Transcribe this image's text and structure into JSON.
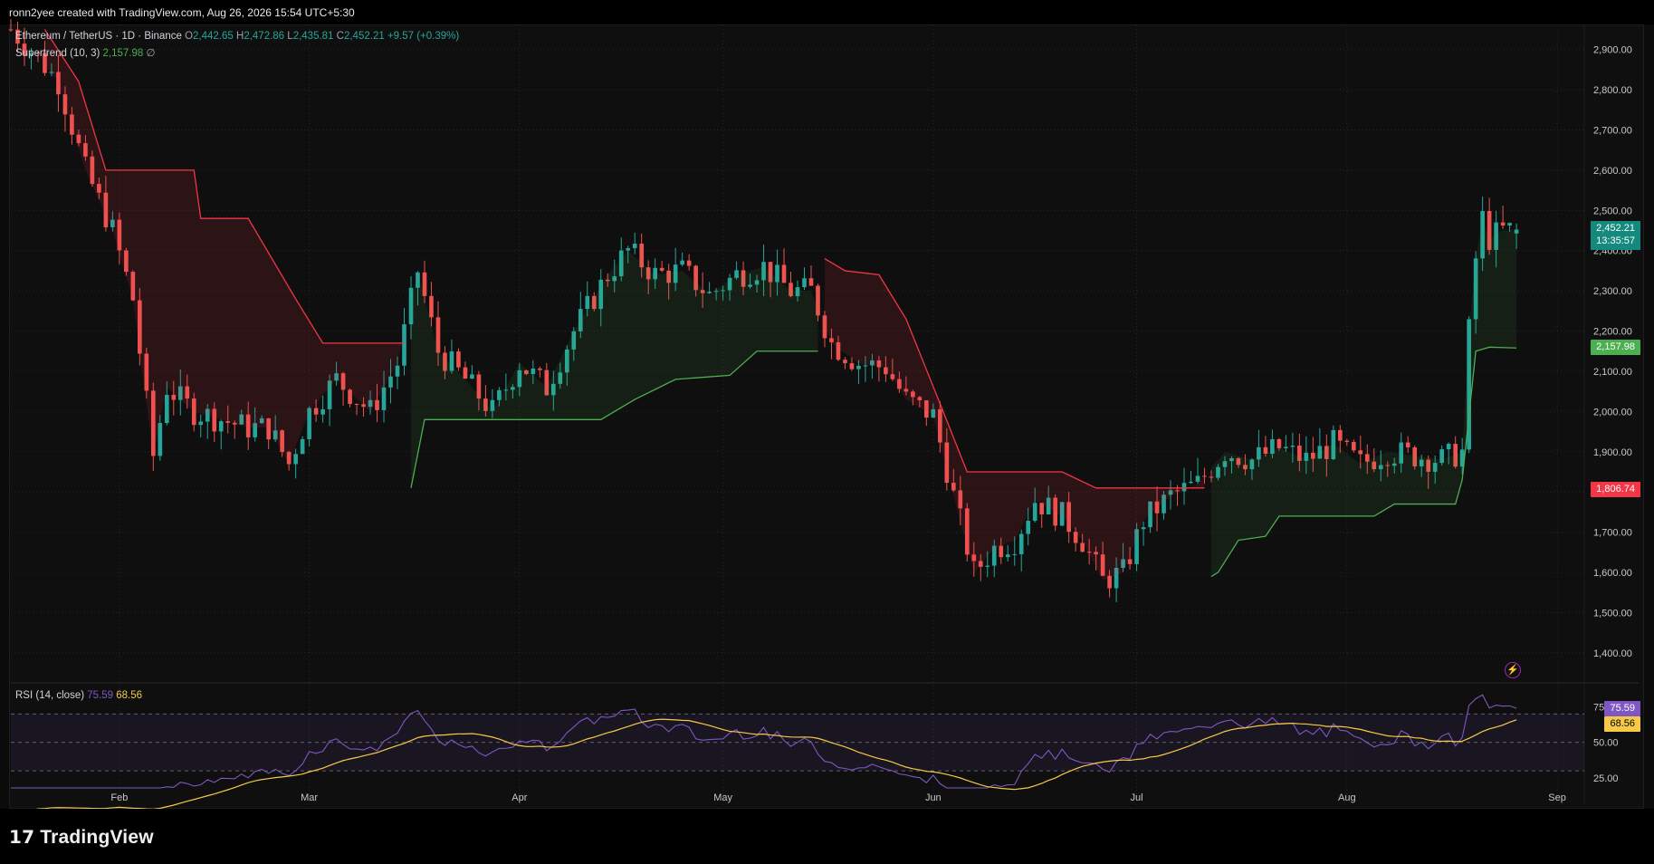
{
  "header": {
    "credit": "ronn2yee created with TradingView.com, Aug 26, 2026 15:54 UTC+5:30"
  },
  "legend": {
    "symbol": "Ethereum / TetherUS · 1D · Binance",
    "o_label": "O",
    "o_value": "2,442.65",
    "h_label": "H",
    "h_value": "2,472.86",
    "l_label": "L",
    "l_value": "2,435.81",
    "c_label": "C",
    "c_value": "2,452.21",
    "change": "+9.57 (+0.39%)",
    "supertrend_label": "Supertrend (10, 3)",
    "supertrend_value": "2,157.98",
    "supertrend_suffix": "∅",
    "rsi_label": "RSI (14, close)",
    "rsi_value": "75.59",
    "rsi_ma_value": "68.56"
  },
  "badges": {
    "last_price": "2,452.21",
    "countdown": "13:35:57",
    "supertrend_up": "2,157.98",
    "supertrend_down": "1,806.74",
    "rsi": "75.59",
    "rsi_ma": "68.56"
  },
  "brand": {
    "name": "TradingView"
  },
  "colors": {
    "up": "#26a69a",
    "down": "#ef5350",
    "supertrend_up": "#4caf50",
    "supertrend_down": "#f23645",
    "rsi": "#7e57c2",
    "rsi_ma": "#f7c948",
    "background": "#0f0f0f",
    "grid": "#262626"
  },
  "chart_data": {
    "type": "candlestick",
    "symbol": "Ethereum / TetherUS",
    "timeframe": "1D",
    "exchange": "Binance",
    "y_ticks": [
      1400,
      1500,
      1600,
      1700,
      1800,
      1900,
      2000,
      2100,
      2200,
      2300,
      2400,
      2500,
      2600,
      2700,
      2800,
      2900
    ],
    "y_tick_labels": [
      "1,400.00",
      "1,500.00",
      "1,600.00",
      "1,700.00",
      "1,800.00",
      "1,900.00",
      "2,000.00",
      "2,100.00",
      "2,200.00",
      "2,300.00",
      "2,400.00",
      "2,500.00",
      "2,600.00",
      "2,700.00",
      "2,800.00",
      "2,900.00"
    ],
    "ylim": [
      1330,
      2960
    ],
    "x_labels": [
      "Feb",
      "Mar",
      "Apr",
      "May",
      "Jun",
      "Jul",
      "Aug",
      "Sep"
    ],
    "x_label_dates": [
      "2026-02-01",
      "2026-03-01",
      "2026-04-01",
      "2026-05-01",
      "2026-06-01",
      "2026-07-01",
      "2026-08-01",
      "2026-09-01"
    ],
    "x_range": [
      "2026-01-16",
      "2026-09-05"
    ],
    "last_candle": {
      "date": "2026-08-26",
      "open": 2442.65,
      "high": 2472.86,
      "low": 2435.81,
      "close": 2452.21
    },
    "price_anchors": [
      [
        "2026-01-16",
        2950
      ],
      [
        "2026-01-20",
        2880
      ],
      [
        "2026-01-23",
        2820
      ],
      [
        "2026-01-27",
        2600
      ],
      [
        "2026-01-31",
        2450
      ],
      [
        "2026-02-03",
        2280
      ],
      [
        "2026-02-06",
        1890
      ],
      [
        "2026-02-08",
        2060
      ],
      [
        "2026-02-12",
        2000
      ],
      [
        "2026-02-16",
        1980
      ],
      [
        "2026-02-20",
        1960
      ],
      [
        "2026-02-23",
        1960
      ],
      [
        "2026-02-26",
        1870
      ],
      [
        "2026-03-01",
        2000
      ],
      [
        "2026-03-05",
        2080
      ],
      [
        "2026-03-10",
        2000
      ],
      [
        "2026-03-14",
        2120
      ],
      [
        "2026-03-17",
        2350
      ],
      [
        "2026-03-20",
        2150
      ],
      [
        "2026-03-24",
        2080
      ],
      [
        "2026-03-28",
        2000
      ],
      [
        "2026-04-01",
        2120
      ],
      [
        "2026-04-05",
        2060
      ],
      [
        "2026-04-09",
        2200
      ],
      [
        "2026-04-14",
        2340
      ],
      [
        "2026-04-17",
        2400
      ],
      [
        "2026-04-21",
        2340
      ],
      [
        "2026-04-25",
        2350
      ],
      [
        "2026-04-29",
        2290
      ],
      [
        "2026-05-03",
        2340
      ],
      [
        "2026-05-07",
        2360
      ],
      [
        "2026-05-11",
        2300
      ],
      [
        "2026-05-14",
        2300
      ],
      [
        "2026-05-17",
        2170
      ],
      [
        "2026-05-21",
        2120
      ],
      [
        "2026-05-25",
        2110
      ],
      [
        "2026-05-28",
        2030
      ],
      [
        "2026-06-01",
        1990
      ],
      [
        "2026-06-04",
        1790
      ],
      [
        "2026-06-07",
        1600
      ],
      [
        "2026-06-10",
        1660
      ],
      [
        "2026-06-13",
        1680
      ],
      [
        "2026-06-16",
        1780
      ],
      [
        "2026-06-20",
        1740
      ],
      [
        "2026-06-23",
        1680
      ],
      [
        "2026-06-26",
        1580
      ],
      [
        "2026-06-29",
        1600
      ],
      [
        "2026-07-02",
        1730
      ],
      [
        "2026-07-06",
        1790
      ],
      [
        "2026-07-10",
        1820
      ],
      [
        "2026-07-14",
        1900
      ],
      [
        "2026-07-18",
        1880
      ],
      [
        "2026-07-22",
        1910
      ],
      [
        "2026-07-26",
        1880
      ],
      [
        "2026-07-30",
        1920
      ],
      [
        "2026-08-03",
        1870
      ],
      [
        "2026-08-07",
        1900
      ],
      [
        "2026-08-11",
        1890
      ],
      [
        "2026-08-15",
        1880
      ],
      [
        "2026-08-18",
        1900
      ],
      [
        "2026-08-19",
        2200
      ],
      [
        "2026-08-20",
        2380
      ],
      [
        "2026-08-21",
        2480
      ],
      [
        "2026-08-22",
        2430
      ],
      [
        "2026-08-24",
        2450
      ],
      [
        "2026-08-26",
        2452
      ]
    ],
    "supertrend": [
      {
        "dir": "down",
        "points": [
          [
            "2026-01-21",
            2950
          ],
          [
            "2026-01-26",
            2820
          ],
          [
            "2026-01-30",
            2600
          ],
          [
            "2026-02-12",
            2600
          ],
          [
            "2026-02-13",
            2480
          ],
          [
            "2026-02-20",
            2480
          ],
          [
            "2026-02-27",
            2280
          ],
          [
            "2026-03-03",
            2170
          ],
          [
            "2026-03-15",
            2170
          ]
        ]
      },
      {
        "dir": "up",
        "points": [
          [
            "2026-03-16",
            1810
          ],
          [
            "2026-03-18",
            1980
          ],
          [
            "2026-04-13",
            1980
          ],
          [
            "2026-04-18",
            2030
          ],
          [
            "2026-04-24",
            2080
          ],
          [
            "2026-05-02",
            2090
          ],
          [
            "2026-05-06",
            2150
          ],
          [
            "2026-05-15",
            2150
          ]
        ]
      },
      {
        "dir": "down",
        "points": [
          [
            "2026-05-16",
            2380
          ],
          [
            "2026-05-19",
            2350
          ],
          [
            "2026-05-24",
            2340
          ],
          [
            "2026-05-28",
            2230
          ],
          [
            "2026-06-02",
            2020
          ],
          [
            "2026-06-06",
            1850
          ],
          [
            "2026-06-20",
            1850
          ],
          [
            "2026-06-25",
            1810
          ],
          [
            "2026-07-11",
            1810
          ]
        ]
      },
      {
        "dir": "up",
        "points": [
          [
            "2026-07-12",
            1590
          ],
          [
            "2026-07-13",
            1600
          ],
          [
            "2026-07-16",
            1680
          ],
          [
            "2026-07-20",
            1690
          ],
          [
            "2026-07-22",
            1740
          ],
          [
            "2026-08-05",
            1740
          ],
          [
            "2026-08-08",
            1770
          ],
          [
            "2026-08-17",
            1770
          ],
          [
            "2026-08-18",
            1830
          ],
          [
            "2026-08-20",
            2150
          ],
          [
            "2026-08-22",
            2160
          ],
          [
            "2026-08-26",
            2158
          ]
        ]
      }
    ],
    "rsi": {
      "label": "RSI (14, close)",
      "y_ticks": [
        25,
        50,
        75
      ],
      "y_tick_labels": [
        "25.00",
        "50.00",
        "75.00"
      ],
      "ylim": [
        18,
        88
      ],
      "bands": [
        30,
        70
      ],
      "rsi_value": 75.59,
      "ma_value": 68.56
    }
  }
}
